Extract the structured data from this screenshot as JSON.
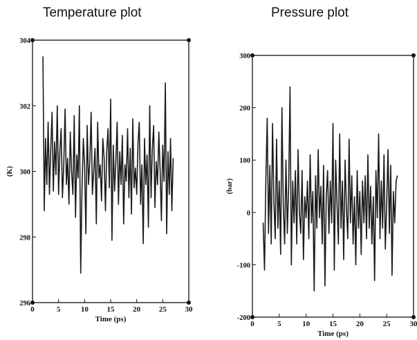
{
  "chart_data": [
    {
      "type": "line",
      "title": "Temperature plot",
      "xlabel": "Time (ps)",
      "ylabel": "(K)",
      "xlim": [
        0,
        30
      ],
      "ylim": [
        296,
        304
      ],
      "xticks": [
        "0",
        "5",
        "10",
        "15",
        "20",
        "25",
        "30"
      ],
      "yticks": [
        "296",
        "298",
        "300",
        "302",
        "304"
      ],
      "line_color": "#1a1a1a",
      "grid": false,
      "series": [
        {
          "x": [
            2.0,
            2.25,
            2.5,
            2.75,
            3.0,
            3.25,
            3.5,
            3.75,
            4.0,
            4.25,
            4.5,
            4.75,
            5.0,
            5.25,
            5.5,
            5.75,
            6.0,
            6.25,
            6.5,
            6.75,
            7.0,
            7.25,
            7.5,
            7.75,
            8.0,
            8.25,
            8.5,
            8.75,
            9.0,
            9.25,
            9.5,
            9.75,
            10.0,
            10.25,
            10.5,
            10.75,
            11.0,
            11.25,
            11.5,
            11.75,
            12.0,
            12.25,
            12.5,
            12.75,
            13.0,
            13.25,
            13.5,
            13.75,
            14.0,
            14.25,
            14.5,
            14.75,
            15.0,
            15.25,
            15.5,
            15.75,
            16.0,
            16.25,
            16.5,
            16.75,
            17.0,
            17.25,
            17.5,
            17.75,
            18.0,
            18.25,
            18.5,
            18.75,
            19.0,
            19.25,
            19.5,
            19.75,
            20.0,
            20.25,
            20.5,
            20.75,
            21.0,
            21.25,
            21.5,
            21.75,
            22.0,
            22.25,
            22.5,
            22.75,
            23.0,
            23.25,
            23.5,
            23.75,
            24.0,
            24.25,
            24.5,
            24.75,
            25.0,
            25.25,
            25.5,
            25.75,
            26.0,
            26.25,
            26.5,
            26.75,
            27.0
          ],
          "y": [
            303.5,
            298.8,
            301.0,
            299.6,
            301.5,
            299.3,
            300.7,
            301.8,
            299.4,
            300.9,
            299.9,
            302.0,
            299.3,
            300.6,
            301.3,
            299.2,
            300.2,
            301.9,
            299.6,
            300.4,
            299.0,
            301.2,
            300.0,
            299.3,
            301.7,
            298.6,
            300.5,
            299.8,
            302.0,
            296.9,
            299.5,
            301.0,
            300.2,
            298.1,
            301.4,
            299.6,
            300.3,
            301.8,
            299.3,
            300.0,
            300.7,
            298.4,
            301.5,
            299.8,
            300.2,
            299.1,
            301.0,
            300.4,
            298.8,
            300.6,
            301.3,
            299.5,
            302.2,
            297.9,
            300.8,
            299.4,
            300.3,
            301.5,
            299.0,
            300.6,
            299.6,
            301.1,
            298.4,
            300.2,
            299.7,
            301.3,
            299.2,
            300.7,
            298.7,
            301.6,
            299.5,
            300.1,
            299.3,
            300.9,
            301.5,
            299.0,
            300.2,
            297.8,
            301.0,
            299.6,
            300.5,
            298.3,
            302.0,
            299.2,
            300.7,
            301.4,
            298.9,
            300.3,
            299.6,
            301.2,
            300.0,
            298.5,
            300.8,
            299.7,
            302.7,
            298.1,
            300.6,
            299.3,
            301.0,
            298.8,
            300.4
          ]
        }
      ]
    },
    {
      "type": "line",
      "title": "Pressure plot",
      "xlabel": "Time (ps)",
      "ylabel": "(bar)",
      "xlim": [
        0,
        30
      ],
      "ylim": [
        -200,
        300
      ],
      "xticks": [
        "0",
        "5",
        "10",
        "15",
        "20",
        "25",
        "30"
      ],
      "yticks": [
        "-200",
        "-100",
        "0",
        "100",
        "200",
        "300"
      ],
      "line_color": "#1a1a1a",
      "grid": false,
      "series": [
        {
          "x": [
            2.0,
            2.25,
            2.5,
            2.75,
            3.0,
            3.25,
            3.5,
            3.75,
            4.0,
            4.25,
            4.5,
            4.75,
            5.0,
            5.25,
            5.5,
            5.75,
            6.0,
            6.25,
            6.5,
            6.75,
            7.0,
            7.25,
            7.5,
            7.75,
            8.0,
            8.25,
            8.5,
            8.75,
            9.0,
            9.25,
            9.5,
            9.75,
            10.0,
            10.25,
            10.5,
            10.75,
            11.0,
            11.25,
            11.5,
            11.75,
            12.0,
            12.25,
            12.5,
            12.75,
            13.0,
            13.25,
            13.5,
            13.75,
            14.0,
            14.25,
            14.5,
            14.75,
            15.0,
            15.25,
            15.5,
            15.75,
            16.0,
            16.25,
            16.5,
            16.75,
            17.0,
            17.25,
            17.5,
            17.75,
            18.0,
            18.25,
            18.5,
            18.75,
            19.0,
            19.25,
            19.5,
            19.75,
            20.0,
            20.25,
            20.5,
            20.75,
            21.0,
            21.25,
            21.5,
            21.75,
            22.0,
            22.25,
            22.5,
            22.75,
            23.0,
            23.25,
            23.5,
            23.75,
            24.0,
            24.25,
            24.5,
            24.75,
            25.0,
            25.25,
            25.5,
            25.75,
            26.0,
            26.25,
            26.5,
            26.75,
            27.0
          ],
          "y": [
            -20,
            -110,
            60,
            180,
            -40,
            90,
            -60,
            170,
            20,
            -50,
            140,
            -30,
            60,
            -80,
            200,
            10,
            -60,
            100,
            -40,
            50,
            240,
            -100,
            60,
            -20,
            80,
            -60,
            120,
            0,
            -40,
            80,
            -90,
            30,
            -10,
            60,
            -50,
            110,
            -20,
            40,
            -150,
            70,
            -30,
            120,
            -10,
            50,
            -60,
            90,
            -140,
            30,
            80,
            -40,
            60,
            -20,
            170,
            -110,
            100,
            20,
            -60,
            150,
            -30,
            60,
            -90,
            100,
            10,
            -50,
            140,
            -20,
            70,
            -60,
            30,
            -100,
            80,
            -30,
            40,
            -80,
            60,
            -20,
            70,
            -50,
            110,
            -30,
            50,
            -60,
            30,
            -130,
            80,
            -10,
            150,
            -50,
            60,
            -30,
            110,
            -70,
            20,
            120,
            -40,
            90,
            -120,
            40,
            -20,
            60,
            70
          ]
        }
      ]
    }
  ]
}
